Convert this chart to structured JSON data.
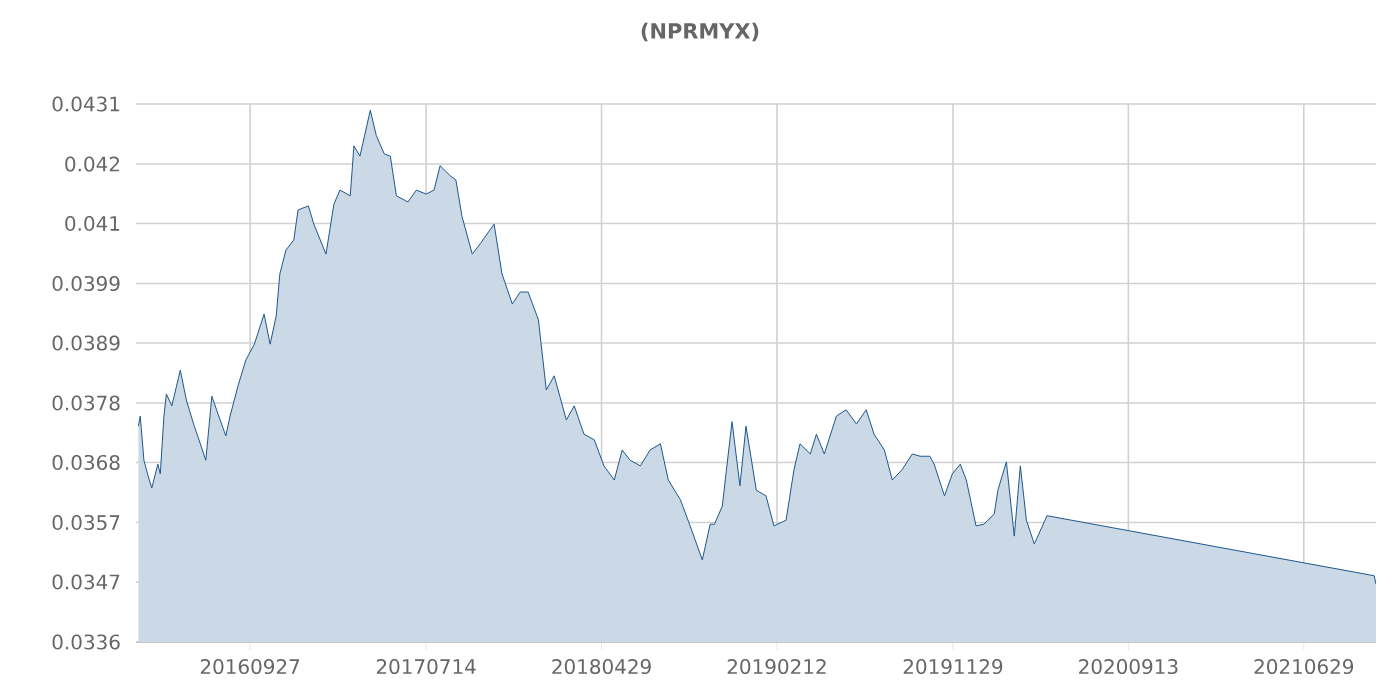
{
  "chart_data": {
    "type": "area",
    "title": "(NPRMYX)",
    "grid": true,
    "legend": false,
    "marker": "none",
    "xlim": [
      "2016-03-23",
      "2021-10-26"
    ],
    "xticks": [
      {
        "value": "2016-09-27",
        "label": "20160927"
      },
      {
        "value": "2017-07-14",
        "label": "20170714"
      },
      {
        "value": "2018-04-29",
        "label": "20180429"
      },
      {
        "value": "2019-02-12",
        "label": "20190212"
      },
      {
        "value": "2019-11-29",
        "label": "20191129"
      },
      {
        "value": "2020-09-13",
        "label": "20200913"
      },
      {
        "value": "2021-06-29",
        "label": "20210629"
      }
    ],
    "ylim": [
      0.0336,
      0.0431
    ],
    "yticks": [
      {
        "value": 0.0336,
        "label": "0.0336"
      },
      {
        "value": 0.03466,
        "label": "0.0347"
      },
      {
        "value": 0.03571,
        "label": "0.0357"
      },
      {
        "value": 0.03677,
        "label": "0.0368"
      },
      {
        "value": 0.03782,
        "label": "0.0378"
      },
      {
        "value": 0.03888,
        "label": "0.0389"
      },
      {
        "value": 0.03993,
        "label": "0.0399"
      },
      {
        "value": 0.04099,
        "label": "0.041"
      },
      {
        "value": 0.04204,
        "label": "0.042"
      },
      {
        "value": 0.0431,
        "label": "0.0431"
      }
    ],
    "series": [
      {
        "color": "#1d578c",
        "x": [
          "2016-03-27",
          "2016-03-30",
          "2016-04-05",
          "2016-04-12",
          "2016-04-18",
          "2016-04-28",
          "2016-05-02",
          "2016-05-08",
          "2016-05-12",
          "2016-05-21",
          "2016-06-04",
          "2016-06-14",
          "2016-06-27",
          "2016-07-07",
          "2016-07-16",
          "2016-07-26",
          "2016-08-05",
          "2016-08-18",
          "2016-08-25",
          "2016-09-07",
          "2016-09-20",
          "2016-10-04",
          "2016-10-20",
          "2016-10-30",
          "2016-11-09",
          "2016-11-15",
          "2016-11-25",
          "2016-12-08",
          "2016-12-15",
          "2017-01-01",
          "2017-01-10",
          "2017-01-30",
          "2017-02-12",
          "2017-02-22",
          "2017-03-11",
          "2017-03-17",
          "2017-03-27",
          "2017-04-13",
          "2017-04-23",
          "2017-05-06",
          "2017-05-16",
          "2017-05-26",
          "2017-06-14",
          "2017-06-28",
          "2017-07-14",
          "2017-07-27",
          "2017-08-06",
          "2017-08-23",
          "2017-09-01",
          "2017-09-11",
          "2017-09-28",
          "2017-10-11",
          "2017-11-03",
          "2017-11-16",
          "2017-12-03",
          "2017-12-16",
          "2017-12-29",
          "2018-01-15",
          "2018-01-28",
          "2018-02-10",
          "2018-03-02",
          "2018-03-15",
          "2018-03-31",
          "2018-04-17",
          "2018-05-03",
          "2018-05-20",
          "2018-06-02",
          "2018-06-15",
          "2018-07-02",
          "2018-07-18",
          "2018-08-04",
          "2018-08-17",
          "2018-09-06",
          "2018-09-22",
          "2018-10-12",
          "2018-10-25",
          "2018-11-01",
          "2018-11-14",
          "2018-11-20",
          "2018-11-30",
          "2018-12-13",
          "2018-12-23",
          "2019-01-09",
          "2019-01-25",
          "2019-02-07",
          "2019-02-27",
          "2019-03-12",
          "2019-03-22",
          "2019-04-08",
          "2019-04-18",
          "2019-05-01",
          "2019-05-21",
          "2019-06-06",
          "2019-06-23",
          "2019-07-09",
          "2019-07-22",
          "2019-08-08",
          "2019-08-21",
          "2019-09-06",
          "2019-09-23",
          "2019-10-06",
          "2019-10-22",
          "2019-10-29",
          "2019-11-15",
          "2019-11-28",
          "2019-12-11",
          "2019-12-21",
          "2020-01-06",
          "2020-01-19",
          "2020-02-05",
          "2020-02-11",
          "2020-02-25",
          "2020-03-09",
          "2020-03-19",
          "2020-03-29",
          "2020-04-11",
          "2020-05-02",
          "2021-10-23",
          "2021-10-26"
        ],
        "values": [
          0.03741,
          0.03759,
          0.03681,
          0.03653,
          0.03632,
          0.03674,
          0.03657,
          0.03759,
          0.03798,
          0.03777,
          0.0384,
          0.03787,
          0.03741,
          0.0371,
          0.03681,
          0.03794,
          0.03763,
          0.03724,
          0.03759,
          0.03812,
          0.03858,
          0.03886,
          0.03939,
          0.03886,
          0.03936,
          0.0401,
          0.04052,
          0.0407,
          0.04123,
          0.0413,
          0.04098,
          0.04045,
          0.04133,
          0.04158,
          0.04148,
          0.04236,
          0.04218,
          0.04299,
          0.04254,
          0.04222,
          0.04218,
          0.04148,
          0.04137,
          0.04158,
          0.04151,
          0.04158,
          0.04201,
          0.04183,
          0.04176,
          0.04112,
          0.04045,
          0.04063,
          0.04098,
          0.0401,
          0.03957,
          0.03978,
          0.03978,
          0.03929,
          0.03805,
          0.0383,
          0.03752,
          0.03777,
          0.03727,
          0.03717,
          0.03671,
          0.03646,
          0.03699,
          0.03681,
          0.03671,
          0.03699,
          0.0371,
          0.03646,
          0.03611,
          0.03565,
          0.03505,
          0.03568,
          0.03568,
          0.036,
          0.03657,
          0.03749,
          0.03636,
          0.03741,
          0.03628,
          0.03618,
          0.03565,
          0.03575,
          0.03664,
          0.0371,
          0.03692,
          0.03727,
          0.03692,
          0.03759,
          0.0377,
          0.03745,
          0.0377,
          0.03727,
          0.03699,
          0.03646,
          0.03664,
          0.03692,
          0.03688,
          0.03688,
          0.03674,
          0.03618,
          0.03657,
          0.03674,
          0.03646,
          0.03565,
          0.03568,
          0.03586,
          0.03628,
          0.03678,
          0.03547,
          0.03671,
          0.03575,
          0.03533,
          0.03583,
          0.03477,
          0.03462
        ]
      }
    ]
  }
}
